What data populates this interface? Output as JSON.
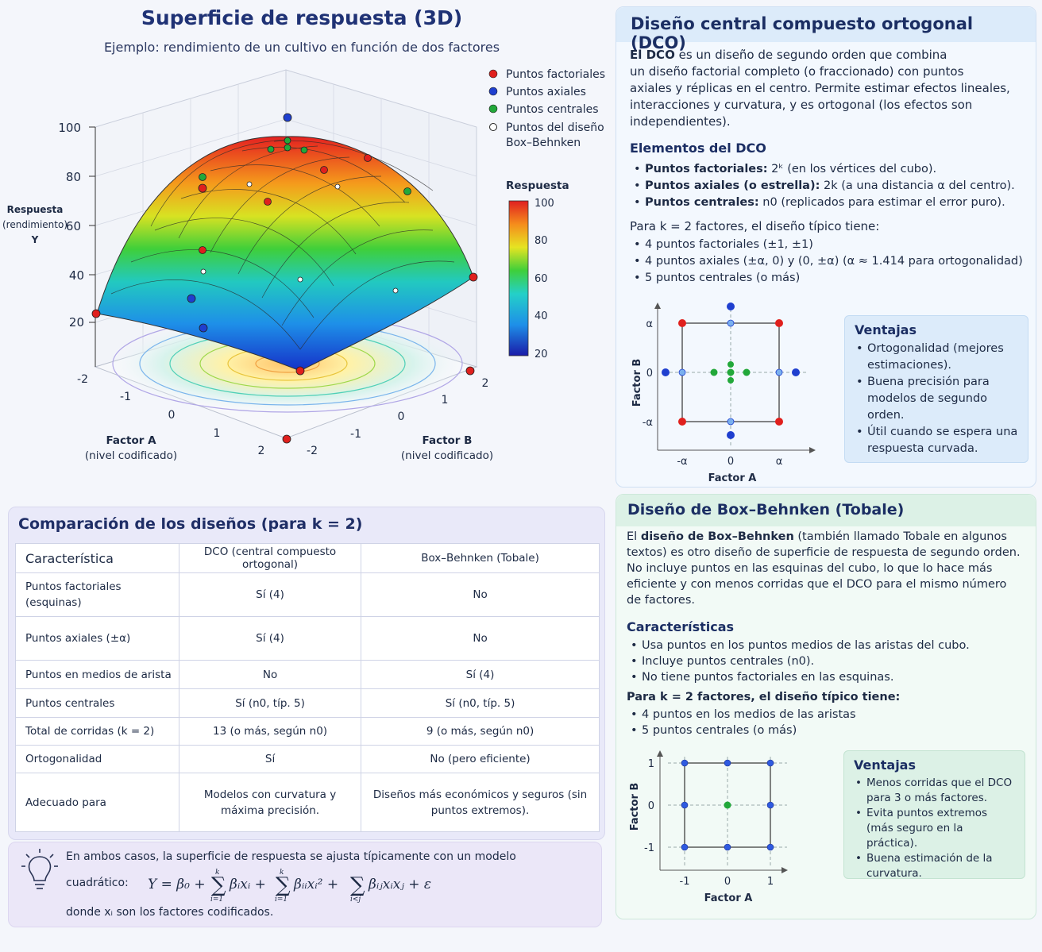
{
  "header": {
    "title": "Superficie de respuesta (3D)",
    "subtitle": "Ejemplo: rendimiento de un cultivo en función de dos factores"
  },
  "plot3d": {
    "z_axis_label": [
      "Respuesta",
      "(rendimiento)",
      "Y"
    ],
    "z_ticks": [
      "100",
      "80",
      "60",
      "40",
      "20"
    ],
    "a_ticks": [
      "-2",
      "-1",
      "0",
      "1",
      "2"
    ],
    "b_ticks": [
      "2",
      "1",
      "0",
      "-1",
      "-2"
    ],
    "factor_a_label": [
      "Factor A",
      "(nivel codificado)"
    ],
    "factor_b_label": [
      "Factor B",
      "(nivel codificado)"
    ],
    "legend": [
      {
        "label": "Puntos factoriales",
        "color": "#e0201d"
      },
      {
        "label": "Puntos axiales",
        "color": "#1f3fcf"
      },
      {
        "label": "Puntos centrales",
        "color": "#22a83a"
      },
      {
        "label": "Puntos del diseño",
        "label2": "Box–Behnken",
        "color": "#ffffff"
      }
    ],
    "colorbar_title": "Respuesta",
    "colorbar_ticks": [
      "100",
      "80",
      "60",
      "40",
      "20"
    ]
  },
  "dco": {
    "title": "Diseño central compuesto ortogonal (DCO)",
    "intro_bold": "El DCO",
    "intro_rest": " es un diseño de segundo orden que combina",
    "intro_lines": [
      "un diseño factorial completo (o fraccionado) con puntos",
      "axiales y réplicas en el centro. Permite estimar efectos lineales,",
      "interacciones y curvatura, y es ortogonal (los efectos son",
      "independientes)."
    ],
    "elements_title": "Elementos del DCO",
    "elements": [
      {
        "bold": "Puntos factoriales:",
        "rest": " 2ᵏ (en los vértices del cubo)."
      },
      {
        "bold": "Puntos axiales (o estrella):",
        "rest": " 2k (a una distancia α del centro)."
      },
      {
        "bold": "Puntos centrales:",
        "rest": " n0 (replicados para estimar el error puro)."
      }
    ],
    "k2_intro": "Para k = 2 factores, el diseño típico tiene:",
    "k2_items": [
      "4 puntos factoriales (±1, ±1)",
      "4 puntos axiales (±α, 0) y (0, ±α)   (α ≈ 1.414 para ortogonalidad)",
      "5 puntos centrales (o más)"
    ],
    "diagram": {
      "y_label": "Factor B",
      "x_label": "Factor A",
      "y_ticks": [
        "α",
        "0",
        "-α"
      ],
      "x_ticks": [
        "-α",
        "0",
        "α"
      ]
    },
    "advantages_title": "Ventajas",
    "advantages": [
      "Ortogonalidad (mejores estimaciones).",
      "Buena precisión para modelos de segundo orden.",
      "Útil cuando se espera una respuesta curvada."
    ]
  },
  "bb": {
    "title": "Diseño de Box–Behnken (Tobale)",
    "intro_pre": "El ",
    "intro_bold": "diseño de Box–Behnken",
    "intro_rest": " (también llamado Tobale en algunos",
    "intro_lines": [
      "textos) es otro diseño de superficie de respuesta de segundo orden.",
      "No incluye puntos en las esquinas del cubo, lo que lo hace más",
      "eficiente y con menos corridas que el DCO para el mismo número",
      "de factores."
    ],
    "char_title": "Características",
    "chars": [
      "Usa puntos en los puntos medios de las aristas del cubo.",
      "Incluye puntos centrales (n0).",
      "No tiene puntos factoriales en las esquinas."
    ],
    "k2_intro": "Para k = 2 factores, el diseño típico tiene:",
    "k2_items": [
      "4 puntos en los medios de las aristas",
      "5 puntos centrales (o más)"
    ],
    "diagram": {
      "y_label": "Factor B",
      "x_label": "Factor A",
      "y_ticks": [
        "1",
        "0",
        "-1"
      ],
      "x_ticks": [
        "-1",
        "0",
        "1"
      ]
    },
    "advantages_title": "Ventajas",
    "advantages": [
      "Menos corridas que el DCO para 3 o más factores.",
      "Evita puntos extremos (más seguro en la práctica).",
      "Buena estimación de la curvatura."
    ]
  },
  "comparison": {
    "title": "Comparación de los diseños (para k = 2)",
    "headers": [
      "Característica",
      "DCO (central compuesto ortogonal)",
      "Box–Behnken (Tobale)"
    ],
    "rows": [
      [
        "Puntos factoriales (esquinas)",
        "Sí (4)",
        "No"
      ],
      [
        "Puntos axiales (±α)",
        "Sí (4)",
        "No"
      ],
      [
        "Puntos en medios de arista",
        "No",
        "Sí (4)"
      ],
      [
        "Puntos centrales",
        "Sí (n0, típ. 5)",
        "Sí (n0, típ. 5)"
      ],
      [
        "Total de corridas (k = 2)",
        "13 (o más, según n0)",
        "9 (o más, según n0)"
      ],
      [
        "Ortogonalidad",
        "Sí",
        "No (pero eficiente)"
      ],
      [
        "Adecuado para",
        "Modelos con curvatura y máxima precisión.",
        "Diseños más económicos y seguros (sin puntos extremos)."
      ]
    ]
  },
  "note": {
    "line1": "En ambos casos, la superficie de respuesta se ajusta típicamente con un modelo",
    "line2": "cuadrático:",
    "line3": "donde  xᵢ  son los factores codificados."
  }
}
